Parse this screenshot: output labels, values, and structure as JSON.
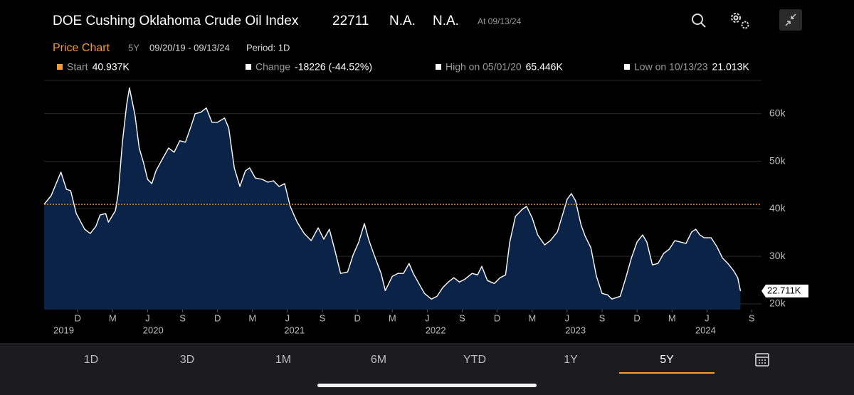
{
  "header": {
    "title": "DOE Cushing Oklahoma Crude Oil Index",
    "last": "22711",
    "change": "N.A.",
    "change_pct": "N.A.",
    "as_of": "At 09/13/24"
  },
  "subheader": {
    "chart_label": "Price Chart",
    "range": "5Y",
    "dates": "09/20/19 - 09/13/24",
    "period": "Period: 1D"
  },
  "stats": [
    {
      "label": "Start",
      "value": "40.937K",
      "color": "#f39c34"
    },
    {
      "label": "Change",
      "value": "-18226 (-44.52%)",
      "color": "#ffffff"
    },
    {
      "label": "High on 05/01/20",
      "value": "65.446K",
      "color": "#ffffff"
    },
    {
      "label": "Low on 10/13/23",
      "value": "21.013K",
      "color": "#ffffff"
    }
  ],
  "chart_data": {
    "type": "area",
    "color": "#ffffff",
    "fill": "#0c2348",
    "x": [
      2019.72,
      2019.77,
      2019.84,
      2019.88,
      2019.91,
      2019.95,
      2020.01,
      2020.05,
      2020.09,
      2020.12,
      2020.16,
      2020.18,
      2020.23,
      2020.25,
      2020.28,
      2020.31,
      2020.33,
      2020.37,
      2020.4,
      2020.43,
      2020.46,
      2020.49,
      2020.52,
      2020.57,
      2020.61,
      2020.65,
      2020.69,
      2020.73,
      2020.77,
      2020.8,
      2020.84,
      2020.88,
      2020.92,
      2020.96,
      2021.01,
      2021.04,
      2021.08,
      2021.12,
      2021.16,
      2021.19,
      2021.23,
      2021.28,
      2021.32,
      2021.36,
      2021.4,
      2021.44,
      2021.48,
      2021.53,
      2021.58,
      2021.63,
      2021.68,
      2021.72,
      2021.76,
      2021.8,
      2021.84,
      2021.89,
      2021.93,
      2021.97,
      2022.01,
      2022.04,
      2022.08,
      2022.13,
      2022.16,
      2022.21,
      2022.25,
      2022.29,
      2022.33,
      2022.36,
      2022.4,
      2022.44,
      2022.49,
      2022.53,
      2022.57,
      2022.61,
      2022.65,
      2022.69,
      2022.73,
      2022.78,
      2022.82,
      2022.85,
      2022.89,
      2022.94,
      2022.98,
      2023.02,
      2023.05,
      2023.09,
      2023.14,
      2023.17,
      2023.21,
      2023.25,
      2023.3,
      2023.34,
      2023.39,
      2023.43,
      2023.46,
      2023.49,
      2023.52,
      2023.56,
      2023.59,
      2023.63,
      2023.67,
      2023.71,
      2023.75,
      2023.78,
      2023.84,
      2023.88,
      2023.92,
      2023.96,
      2024.0,
      2024.03,
      2024.07,
      2024.11,
      2024.15,
      2024.19,
      2024.23,
      2024.27,
      2024.31,
      2024.35,
      2024.38,
      2024.41,
      2024.44,
      2024.49,
      2024.53,
      2024.57,
      2024.61,
      2024.65,
      2024.68,
      2024.7
    ],
    "values": [
      40937,
      42750,
      47700,
      44100,
      43800,
      39000,
      35700,
      34800,
      36300,
      38700,
      39000,
      37200,
      39600,
      43200,
      54000,
      61800,
      65446,
      59700,
      52800,
      49800,
      46200,
      45300,
      48000,
      50700,
      52800,
      51900,
      54300,
      54000,
      57300,
      60000,
      60300,
      61200,
      58200,
      58200,
      59100,
      57000,
      48600,
      44700,
      48000,
      48600,
      46500,
      46200,
      45600,
      45900,
      44700,
      45300,
      40500,
      37200,
      34800,
      33300,
      36000,
      33600,
      35700,
      31200,
      26400,
      26700,
      30300,
      33000,
      36900,
      33600,
      30300,
      26400,
      22800,
      25800,
      26400,
      26400,
      28500,
      26400,
      24300,
      22200,
      21000,
      21600,
      23400,
      24600,
      25500,
      24600,
      25200,
      26400,
      26100,
      27900,
      24900,
      24300,
      25500,
      26100,
      33000,
      38400,
      39900,
      40500,
      38100,
      34500,
      32400,
      33300,
      35100,
      39000,
      42000,
      43200,
      41700,
      36600,
      34200,
      31800,
      25800,
      22200,
      21900,
      21013,
      21600,
      25500,
      29700,
      33000,
      34500,
      33000,
      28200,
      28500,
      30600,
      31500,
      33300,
      33000,
      32700,
      35100,
      35700,
      34500,
      33900,
      33900,
      32100,
      29700,
      28500,
      27000,
      25500,
      22711
    ],
    "last_value_label": "22.711K",
    "reference_value": 40937,
    "reference_color": "#f39c34",
    "xlim": [
      2019.72,
      2024.85
    ],
    "ylim": [
      18800,
      67000
    ],
    "yticks": [
      {
        "value": 20000,
        "label": "20k"
      },
      {
        "value": 30000,
        "label": "30k"
      },
      {
        "value": 40000,
        "label": "40k"
      },
      {
        "value": 50000,
        "label": "50k"
      },
      {
        "value": 60000,
        "label": "60k"
      }
    ],
    "xticks": [
      {
        "value": 2019.96,
        "label": "D"
      },
      {
        "value": 2020.21,
        "label": "M"
      },
      {
        "value": 2020.46,
        "label": "J"
      },
      {
        "value": 2020.71,
        "label": "S"
      },
      {
        "value": 2020.96,
        "label": "D"
      },
      {
        "value": 2021.21,
        "label": "M"
      },
      {
        "value": 2021.46,
        "label": "J"
      },
      {
        "value": 2021.71,
        "label": "S"
      },
      {
        "value": 2021.96,
        "label": "D"
      },
      {
        "value": 2022.21,
        "label": "M"
      },
      {
        "value": 2022.46,
        "label": "J"
      },
      {
        "value": 2022.71,
        "label": "S"
      },
      {
        "value": 2022.96,
        "label": "D"
      },
      {
        "value": 2023.21,
        "label": "M"
      },
      {
        "value": 2023.46,
        "label": "J"
      },
      {
        "value": 2023.71,
        "label": "S"
      },
      {
        "value": 2023.96,
        "label": "D"
      },
      {
        "value": 2024.21,
        "label": "M"
      },
      {
        "value": 2024.46,
        "label": "J"
      },
      {
        "value": 2024.78,
        "label": "S"
      }
    ],
    "year_ticks": [
      {
        "value": 2019.86,
        "label": "2019"
      },
      {
        "value": 2020.5,
        "label": "2020"
      },
      {
        "value": 2021.51,
        "label": "2021"
      },
      {
        "value": 2022.52,
        "label": "2022"
      },
      {
        "value": 2023.52,
        "label": "2023"
      },
      {
        "value": 2024.45,
        "label": "2024"
      }
    ],
    "grid": true
  },
  "tabs": {
    "items": [
      "1D",
      "3D",
      "1M",
      "6M",
      "YTD",
      "1Y",
      "5Y"
    ],
    "selected": 6
  }
}
